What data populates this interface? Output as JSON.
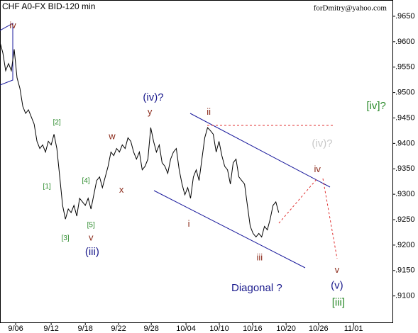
{
  "chart_data": {
    "type": "line",
    "title": "CHF A0-FX BID-120 min",
    "subtitle": "forDmitry@yahoo.com",
    "color": "#000000",
    "values": [
      0.9599,
      0.9578,
      0.9543,
      0.9557,
      0.9543,
      0.9585,
      0.9529,
      0.9508,
      0.9473,
      0.9459,
      0.9466,
      0.9452,
      0.9438,
      0.9404,
      0.939,
      0.9397,
      0.9383,
      0.9404,
      0.9397,
      0.9418,
      0.939,
      0.9334,
      0.9278,
      0.9251,
      0.9271,
      0.9264,
      0.9278,
      0.9257,
      0.9292,
      0.9285,
      0.9278,
      0.9292,
      0.9271,
      0.9299,
      0.9327,
      0.9334,
      0.9313,
      0.9334,
      0.9355,
      0.9383,
      0.9376,
      0.939,
      0.9383,
      0.9397,
      0.939,
      0.9411,
      0.9404,
      0.9383,
      0.9369,
      0.9383,
      0.9348,
      0.9355,
      0.9369,
      0.9431,
      0.9404,
      0.9383,
      0.9397,
      0.9362,
      0.9355,
      0.9341,
      0.9369,
      0.9383,
      0.939,
      0.9348,
      0.932,
      0.9299,
      0.9313,
      0.9292,
      0.9334,
      0.9348,
      0.9327,
      0.9369,
      0.9411,
      0.9431,
      0.9425,
      0.9418,
      0.9383,
      0.9404,
      0.9376,
      0.9355,
      0.9348,
      0.932,
      0.9362,
      0.9369,
      0.9334,
      0.9327,
      0.932,
      0.9278,
      0.9237,
      0.9223,
      0.9216,
      0.9223,
      0.9216,
      0.9237,
      0.923,
      0.9251,
      0.9278,
      0.9285,
      0.9264
    ],
    "xlim": [
      0,
      138
    ],
    "xticks": [
      {
        "value": 5.5,
        "label": "9/06"
      },
      {
        "value": 18,
        "label": "9/12"
      },
      {
        "value": 30,
        "label": "9/18"
      },
      {
        "value": 41.7,
        "label": "9/22"
      },
      {
        "value": 53.2,
        "label": "9/28"
      },
      {
        "value": 65.4,
        "label": "10/04"
      },
      {
        "value": 77.1,
        "label": "10/10"
      },
      {
        "value": 88.8,
        "label": "10/16"
      },
      {
        "value": 100.6,
        "label": "10/20"
      },
      {
        "value": 112,
        "label": "10/26"
      },
      {
        "value": 124.3,
        "label": "11/01"
      }
    ],
    "ylim": [
      0.9048,
      0.9682
    ],
    "yticks": [
      {
        "value": 0.965,
        "label": ".9650"
      },
      {
        "value": 0.96,
        "label": ".9600"
      },
      {
        "value": 0.955,
        "label": ".9550"
      },
      {
        "value": 0.95,
        "label": ".9500"
      },
      {
        "value": 0.945,
        "label": ".9450"
      },
      {
        "value": 0.94,
        "label": ".9400"
      },
      {
        "value": 0.935,
        "label": ".9350"
      },
      {
        "value": 0.93,
        "label": ".9300"
      },
      {
        "value": 0.925,
        "label": ".9250"
      },
      {
        "value": 0.92,
        "label": ".9200"
      },
      {
        "value": 0.915,
        "label": ".9150"
      },
      {
        "value": 0.91,
        "label": ".9100"
      }
    ],
    "annotations": [
      {
        "text": "iv",
        "x": 4.5,
        "y": 0.9631,
        "color": "#8b2a1a"
      },
      {
        "text": "[2]",
        "x": 20,
        "y": 0.9441,
        "color": "#2a8a2a"
      },
      {
        "text": "[1]",
        "x": 16.5,
        "y": 0.9315,
        "color": "#2a8a2a"
      },
      {
        "text": "[4]",
        "x": 30.2,
        "y": 0.9326,
        "color": "#2a8a2a"
      },
      {
        "text": "[3]",
        "x": 23,
        "y": 0.9213,
        "color": "#2a8a2a"
      },
      {
        "text": "[5]",
        "x": 32,
        "y": 0.9239,
        "color": "#2a8a2a"
      },
      {
        "text": "v",
        "x": 32,
        "y": 0.9214,
        "color": "#8b2a1a"
      },
      {
        "text": "(iii)",
        "x": 32.4,
        "y": 0.9186,
        "color": "#1a1a8c"
      },
      {
        "text": "w",
        "x": 39.4,
        "y": 0.9413,
        "color": "#8b2a1a"
      },
      {
        "text": "x",
        "x": 42.7,
        "y": 0.9308,
        "color": "#8b2a1a"
      },
      {
        "text": "(iv)?",
        "x": 53.9,
        "y": 0.949,
        "color": "#1a1a8c"
      },
      {
        "text": "y",
        "x": 52.7,
        "y": 0.9461,
        "color": "#8b2a1a"
      },
      {
        "text": "ii",
        "x": 73.4,
        "y": 0.9461,
        "color": "#8b2a1a"
      },
      {
        "text": "i",
        "x": 66.4,
        "y": 0.9241,
        "color": "#8b2a1a"
      },
      {
        "text": "iii",
        "x": 91.3,
        "y": 0.9175,
        "color": "#8b2a1a"
      },
      {
        "text": "(iv)?",
        "x": 113.3,
        "y": 0.9399,
        "color": "#c8c8c8"
      },
      {
        "text": "iv",
        "x": 111.6,
        "y": 0.9348,
        "color": "#8b2a1a"
      },
      {
        "text": "[iv]?",
        "x": 132.3,
        "y": 0.9473,
        "color": "#2a8a2a"
      },
      {
        "text": "v",
        "x": 118.5,
        "y": 0.915,
        "color": "#8b2a1a"
      },
      {
        "text": "(v)",
        "x": 118.5,
        "y": 0.912,
        "color": "#1a1a8c"
      },
      {
        "text": "[iii]",
        "x": 119,
        "y": 0.9086,
        "color": "#2a8a2a"
      },
      {
        "text": "Diagonal ?",
        "x": 90.3,
        "y": 0.9115,
        "color": "#1a1a8c"
      }
    ]
  }
}
